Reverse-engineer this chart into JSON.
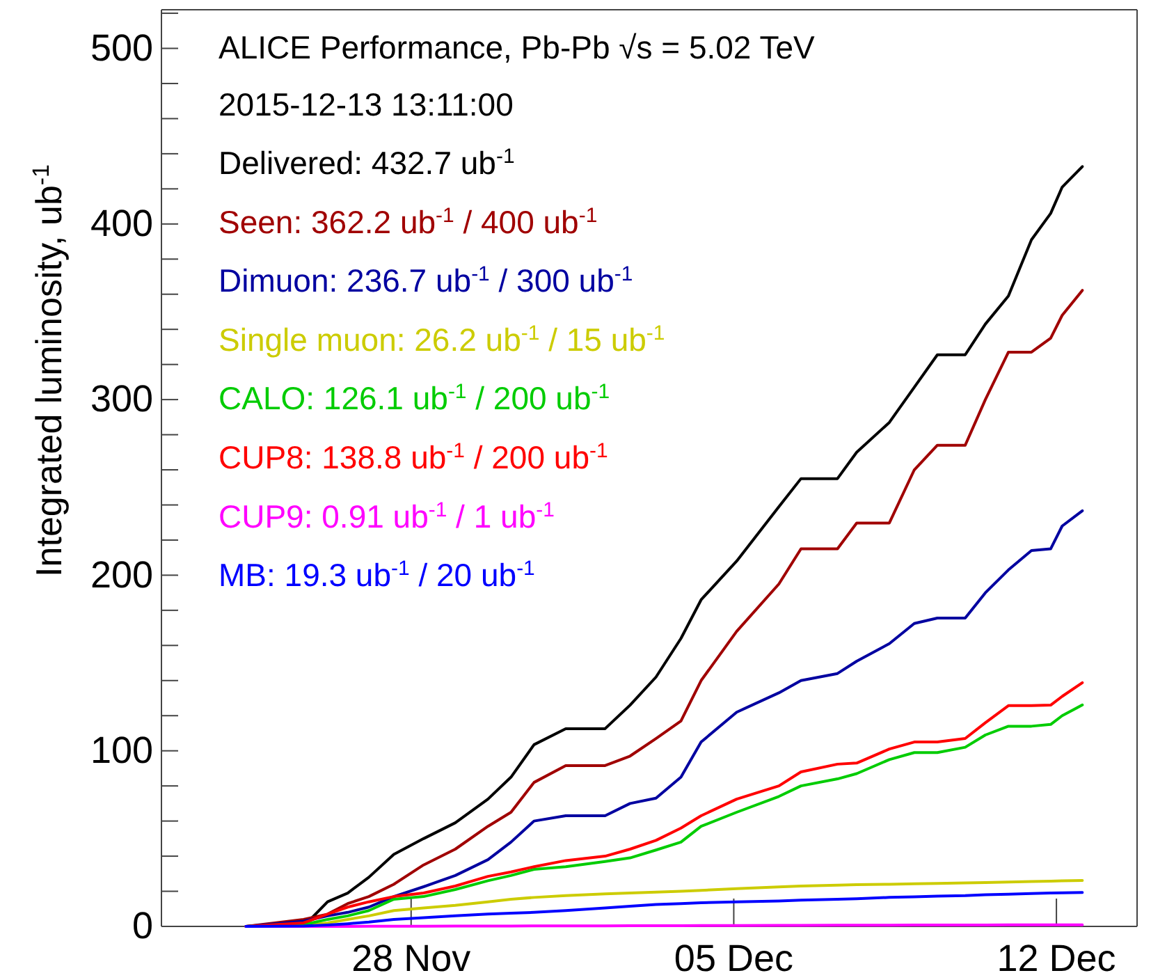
{
  "chart_data": {
    "type": "line",
    "title": "ALICE Performance, Pb-Pb √s = 5.02 TeV",
    "subtitle": "2015-12-13 13:11:00",
    "ylabel": "Integrated luminosity, ub$^{-1}$",
    "x": [
      "2015-11-24T10:00",
      "2015-11-25T16:00",
      "2015-11-26T04:30",
      "2015-11-26T15:00",
      "2015-11-27T02:00",
      "2015-11-27T15:00",
      "2015-11-28T06:30",
      "2015-11-28T23:00",
      "2015-11-29T16:00",
      "2015-11-30T04:00",
      "2015-11-30T16:00",
      "2015-12-01T08:30",
      "2015-12-02T05:00",
      "2015-12-02T18:00",
      "2015-12-03T07:30",
      "2015-12-03T20:30",
      "2015-12-04T07:00",
      "2015-12-05T01:30",
      "2015-12-05T23:30",
      "2015-12-06T11:00",
      "2015-12-07T06:00",
      "2015-12-07T16:00",
      "2015-12-08T09:00",
      "2015-12-08T22:00",
      "2015-12-09T10:00",
      "2015-12-10T00:30",
      "2015-12-10T11:00",
      "2015-12-10T23:00",
      "2015-12-11T11:00",
      "2015-12-11T21:00",
      "2015-12-12T03:00",
      "2015-12-12T13:30"
    ],
    "series": [
      {
        "name": "Delivered: 432.7 ub$^{-1}$",
        "color": "#000000",
        "values": [
          0,
          0,
          14,
          19,
          28,
          41,
          50,
          59,
          72.5,
          85,
          103.5,
          112.6,
          112.6,
          126,
          142,
          164,
          186,
          208,
          239,
          255,
          255,
          270,
          287,
          307,
          325.5,
          325.5,
          343,
          359,
          391,
          406,
          421,
          432.7
        ]
      },
      {
        "name": "Seen: 362.2 ub$^{-1}$ / 400 ub$^{-1}$",
        "color": "#a00000",
        "values": [
          0,
          4,
          7,
          13,
          17,
          24,
          35,
          44,
          57,
          65,
          82,
          91.6,
          91.6,
          97,
          107,
          117,
          140,
          168,
          195,
          215,
          215,
          229.7,
          229.7,
          260,
          274,
          274,
          300,
          327,
          327,
          335,
          348,
          362.2
        ]
      },
      {
        "name": "Dimuon: 236.7 ub$^{-1}$ / 300 ub$^{-1}$",
        "color": "#0000a0",
        "values": [
          0,
          3,
          6,
          8,
          11,
          17,
          22.6,
          29,
          38,
          48,
          60,
          63,
          63,
          70,
          73,
          85,
          105,
          122,
          133,
          140,
          144,
          151,
          161,
          172.5,
          175.6,
          175.6,
          190,
          203,
          214,
          215,
          228,
          236.7
        ]
      },
      {
        "name": "Single muon: 26.2 ub$^{-1}$ / 15 ub$^{-1}$",
        "color": "#cccc00",
        "values": [
          0,
          0.5,
          2,
          4,
          6,
          9,
          10.5,
          12,
          14,
          15.5,
          16.5,
          17.5,
          18.5,
          19,
          19.5,
          20,
          20.5,
          21.5,
          22.5,
          23,
          23.5,
          23.8,
          24,
          24.3,
          24.5,
          24.8,
          25,
          25.3,
          25.6,
          25.8,
          26,
          26.2
        ]
      },
      {
        "name": "CALO: 126.1 ub$^{-1}$ / 200 ub$^{-1}$",
        "color": "#00cc00",
        "values": [
          0,
          1,
          4,
          6,
          9,
          15.5,
          17,
          21,
          26,
          29,
          32.5,
          34,
          37,
          39,
          43.5,
          48,
          57,
          65,
          74,
          80,
          84,
          87,
          95,
          99,
          99,
          102,
          109,
          114,
          114,
          115,
          120,
          126.1
        ]
      },
      {
        "name": "CUP8: 138.8 ub$^{-1}$ / 200 ub$^{-1}$",
        "color": "#ff0000",
        "values": [
          0,
          2,
          7,
          11,
          14,
          17,
          19,
          23,
          28.5,
          31,
          34,
          37.5,
          40,
          44,
          49,
          56,
          63,
          72.5,
          80,
          88,
          92.4,
          93,
          101,
          105,
          105,
          107,
          116,
          125.7,
          125.7,
          126,
          131,
          138.8
        ]
      },
      {
        "name": "CUP9: 0.91 ub$^{-1}$ / 1 ub$^{-1}$",
        "color": "#ff00ff",
        "values": [
          0,
          0,
          0,
          0,
          0.1,
          0.1,
          0.1,
          0.2,
          0.2,
          0.2,
          0.3,
          0.3,
          0.3,
          0.4,
          0.4,
          0.4,
          0.5,
          0.5,
          0.6,
          0.6,
          0.7,
          0.7,
          0.7,
          0.8,
          0.8,
          0.8,
          0.8,
          0.9,
          0.9,
          0.9,
          0.9,
          0.91
        ]
      },
      {
        "name": "MB: 19.3 ub$^{-1}$ / 20 ub$^{-1}$",
        "color": "#0000ff",
        "values": [
          0,
          0.2,
          0.8,
          1.5,
          2.5,
          4,
          5,
          6,
          7,
          7.5,
          8,
          9,
          10.5,
          11.5,
          12.5,
          13,
          13.5,
          14,
          14.5,
          15,
          15.5,
          15.8,
          16.5,
          16.8,
          17.2,
          17.5,
          18,
          18.3,
          18.7,
          19,
          19.1,
          19.3
        ]
      }
    ],
    "xlim": [
      "2015-11-22T14:00",
      "2015-12-13T18:00"
    ],
    "xticks": [
      {
        "value": "2015-11-28",
        "label": "28 Nov"
      },
      {
        "value": "2015-12-05",
        "label": "05 Dec"
      },
      {
        "value": "2015-12-12",
        "label": "12 Dec"
      }
    ],
    "ylim": [
      0,
      522
    ],
    "yticks": [
      0,
      {
        "value": 20,
        "label": null
      },
      {
        "value": 40,
        "label": null
      },
      {
        "value": 60,
        "label": null
      },
      {
        "value": 80,
        "label": null
      },
      100,
      {
        "value": 120,
        "label": null
      },
      {
        "value": 140,
        "label": null
      },
      {
        "value": 160,
        "label": null
      },
      {
        "value": 180,
        "label": null
      },
      200,
      {
        "value": 220,
        "label": null
      },
      {
        "value": 240,
        "label": null
      },
      {
        "value": 260,
        "label": null
      },
      {
        "value": 280,
        "label": null
      },
      300,
      {
        "value": 320,
        "label": null
      },
      {
        "value": 340,
        "label": null
      },
      {
        "value": 360,
        "label": null
      },
      {
        "value": 380,
        "label": null
      },
      400,
      {
        "value": 420,
        "label": null
      },
      {
        "value": 440,
        "label": null
      },
      {
        "value": 460,
        "label": null
      },
      {
        "value": 480,
        "label": null
      },
      500,
      {
        "value": 520,
        "label": null
      }
    ],
    "legend": "top left",
    "grid": false,
    "line_style": "solid"
  }
}
